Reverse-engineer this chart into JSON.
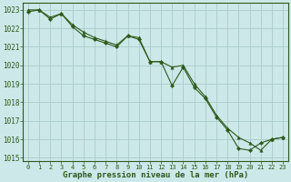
{
  "line1_x": [
    0,
    1,
    2,
    3,
    4,
    5,
    6,
    7,
    8,
    9,
    10,
    11,
    12,
    13,
    14,
    15,
    16,
    17,
    18,
    19,
    20,
    21,
    22,
    23
  ],
  "line1_y": [
    1023.0,
    1023.0,
    1022.6,
    1022.8,
    1022.2,
    1021.8,
    1021.5,
    1021.3,
    1021.1,
    1021.6,
    1021.5,
    1020.2,
    1020.2,
    1019.9,
    1020.0,
    1019.0,
    1018.3,
    1017.3,
    1016.6,
    1016.1,
    1015.8,
    1015.4,
    1016.0,
    1016.1
  ],
  "line2_x": [
    0,
    1,
    2,
    3,
    4,
    5,
    6,
    7,
    8,
    9,
    10,
    11,
    12,
    13,
    14,
    15,
    16,
    17,
    18,
    19,
    20,
    21,
    22,
    23
  ],
  "line2_y": [
    1022.9,
    1023.0,
    1022.5,
    1022.8,
    1022.1,
    1021.6,
    1021.4,
    1021.2,
    1021.0,
    1021.6,
    1021.4,
    1020.2,
    1020.2,
    1018.9,
    1019.9,
    1018.8,
    1018.2,
    1017.2,
    1016.5,
    1015.5,
    1015.4,
    1015.8,
    1016.0,
    1016.1
  ],
  "line_color": "#2d5a1b",
  "bg_color": "#cce8e8",
  "grid_color": "#aacccc",
  "xlabel": "Graphe pression niveau de la mer (hPa)",
  "xlabel_color": "#2d5a1b",
  "ylim": [
    1014.8,
    1023.4
  ],
  "xlim": [
    -0.5,
    23.5
  ],
  "yticks": [
    1015,
    1016,
    1017,
    1018,
    1019,
    1020,
    1021,
    1022,
    1023
  ],
  "xticks": [
    0,
    1,
    2,
    3,
    4,
    5,
    6,
    7,
    8,
    9,
    10,
    11,
    12,
    13,
    14,
    15,
    16,
    17,
    18,
    19,
    20,
    21,
    22,
    23
  ],
  "tick_fontsize": 5.0,
  "ytick_fontsize": 5.5,
  "xlabel_fontsize": 6.5
}
